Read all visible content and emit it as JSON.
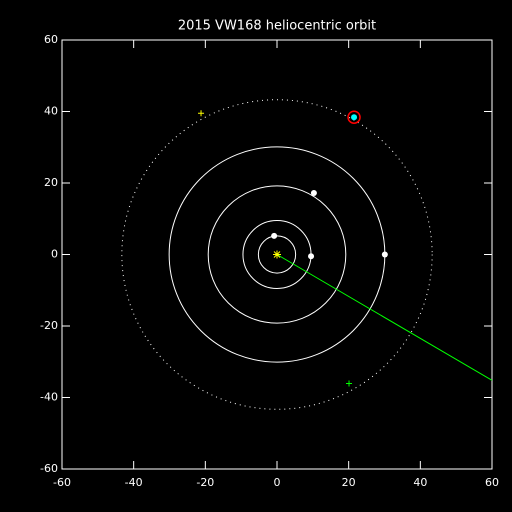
{
  "chart_data": {
    "type": "scatter",
    "title": "2015 VW168 heliocentric orbit",
    "xlim": [
      -60,
      60
    ],
    "ylim": [
      -60,
      60
    ],
    "xticks": [
      -60,
      -40,
      -20,
      0,
      20,
      40,
      60
    ],
    "yticks": [
      -60,
      -40,
      -20,
      0,
      20,
      40,
      60
    ],
    "orbits": {
      "radii": [
        5.2,
        9.5,
        19.2,
        30.1
      ],
      "color": "#ffffff",
      "style": "solid"
    },
    "object_orbit": {
      "radii": [
        43.3
      ],
      "color": "#ffffff",
      "style": "dotted"
    },
    "line": {
      "x": [
        0,
        60
      ],
      "y": [
        0,
        -35.2
      ],
      "color": "#00ff00"
    },
    "series": [
      {
        "x": [
          -0.8,
          9.5,
          10.3,
          30.1
        ],
        "y": [
          5.2,
          -0.5,
          17.2,
          0
        ],
        "color": "#ffffff",
        "marker": "dot"
      },
      {
        "x": [
          0
        ],
        "y": [
          0
        ],
        "color": "#ffff00",
        "marker": "asterisk"
      },
      {
        "x": [
          21.5
        ],
        "y": [
          38.4
        ],
        "color": "#00ffff",
        "marker": "dot",
        "highlight": "#ff0000"
      },
      {
        "x": [
          -21.2
        ],
        "y": [
          39.5
        ],
        "color": "#ffff00",
        "marker": "plus"
      },
      {
        "x": [
          20.1
        ],
        "y": [
          -36.1
        ],
        "color": "#00ff00",
        "marker": "plus"
      }
    ]
  }
}
